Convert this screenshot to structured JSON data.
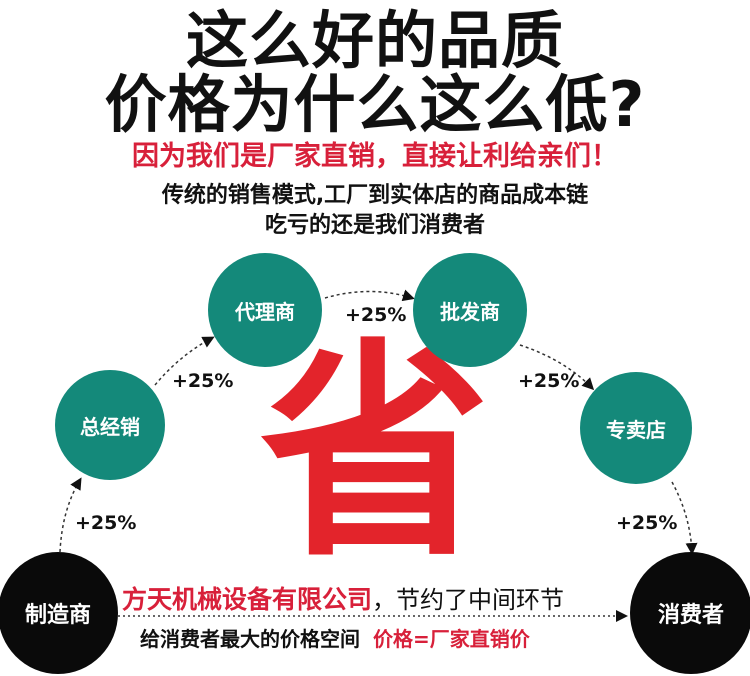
{
  "header": {
    "title_line1": "这么好的品质",
    "title_line2": "价格为什么这么低?",
    "red_subtitle": "因为我们是厂家直销，直接让利给亲们！",
    "desc_line1": "传统的销售模式,工厂到实体店的商品成本链",
    "desc_line2": "吃亏的还是我们消费者"
  },
  "chain": {
    "nodes": [
      "制造商",
      "总经销",
      "代理商",
      "批发商",
      "专卖店",
      "消费者"
    ],
    "markups": [
      "+25%",
      "+25%",
      "+25%",
      "+25%",
      "+25%"
    ]
  },
  "center_character": "省",
  "bottom": {
    "company": "方天机械设备有限公司",
    "company_suffix": "，节约了中间环节",
    "line2": "给消费者最大的价格空间",
    "price_note": "价格=厂家直销价"
  },
  "colors": {
    "teal": "#14897a",
    "red": "#e3242b",
    "black": "#0a0a0a"
  }
}
